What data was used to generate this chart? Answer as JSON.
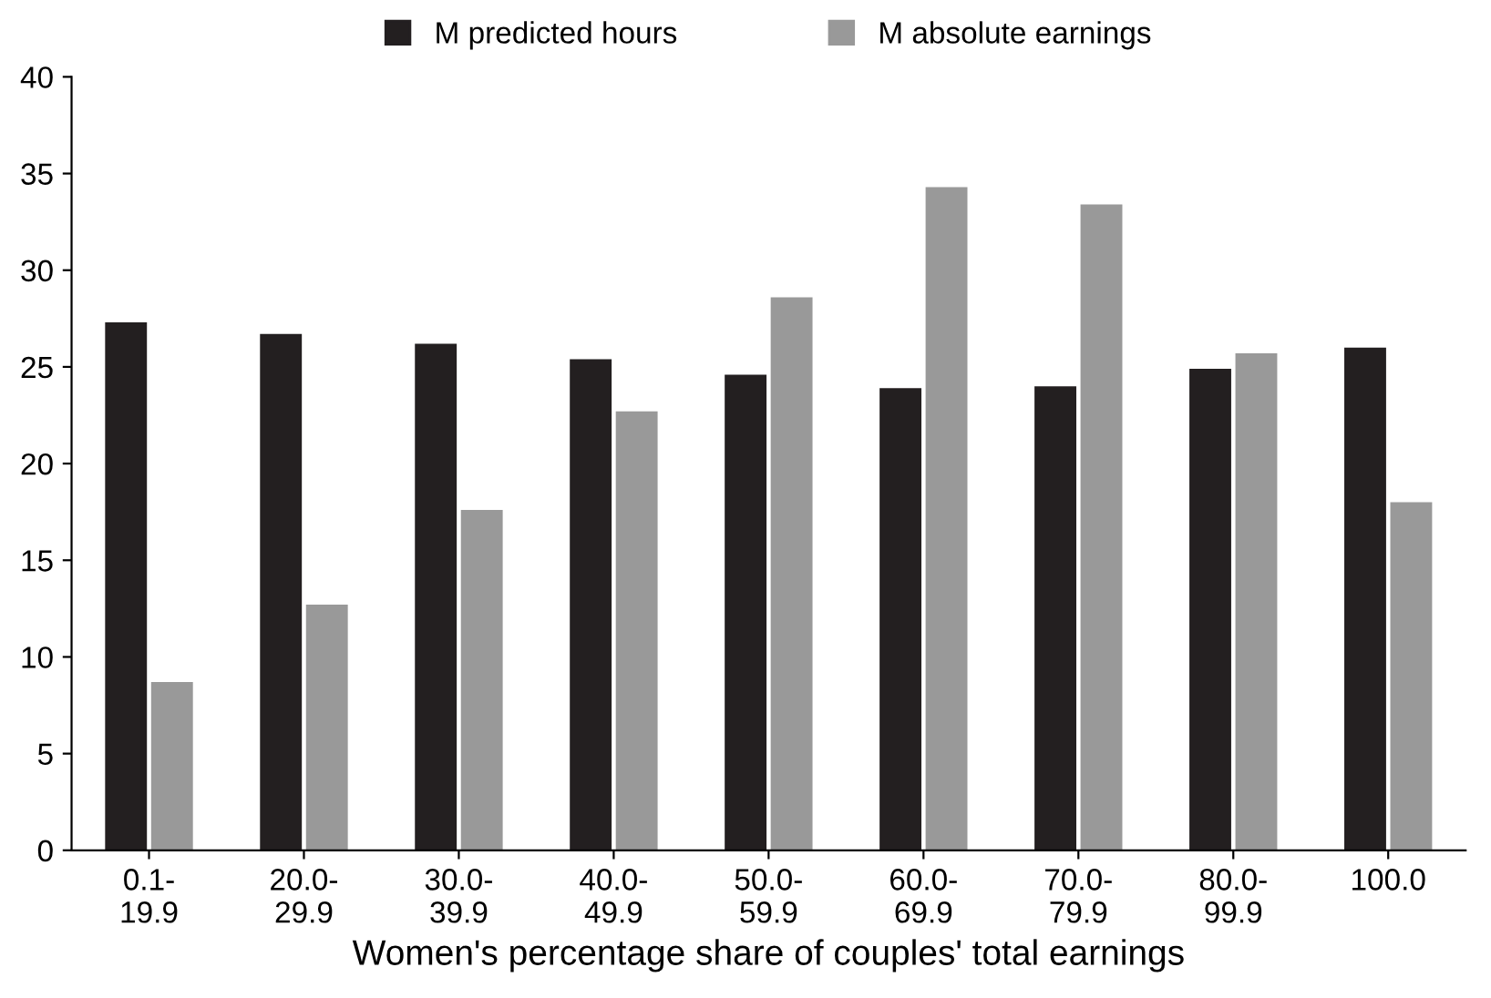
{
  "chart_data": {
    "type": "bar",
    "xlabel": "Women's percentage share of couples' total earnings",
    "categories": [
      "0.1-\n19.9",
      "20.0-\n29.9",
      "30.0-\n39.9",
      "40.0-\n49.9",
      "50.0-\n59.9",
      "60.0-\n69.9",
      "70.0-\n79.9",
      "80.0-\n99.9",
      "100.0"
    ],
    "series": [
      {
        "name": "M predicted hours",
        "color": "#231f20",
        "values": [
          27.3,
          26.7,
          26.2,
          25.4,
          24.6,
          23.9,
          24.0,
          24.9,
          26.0
        ]
      },
      {
        "name": "M absolute earnings",
        "color": "#999999",
        "values": [
          8.7,
          12.7,
          17.6,
          22.7,
          28.6,
          34.3,
          33.4,
          25.7,
          18.0
        ]
      }
    ],
    "ylim": [
      0,
      40
    ],
    "yticks": [
      0,
      5,
      10,
      15,
      20,
      25,
      30,
      35,
      40
    ],
    "grid": false,
    "legend": "top"
  }
}
